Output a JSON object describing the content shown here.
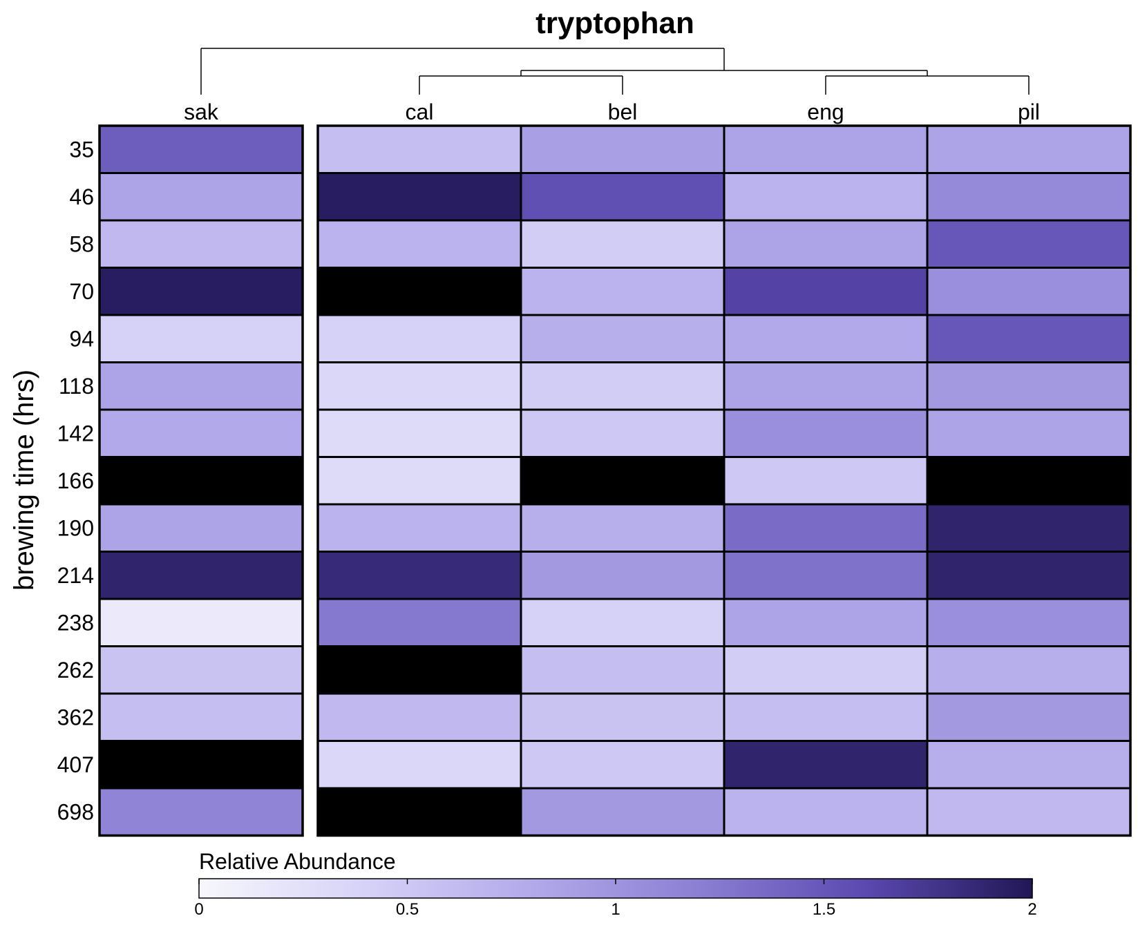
{
  "chart_data": {
    "type": "heatmap",
    "title": "tryptophan",
    "ylabel": "brewing time (hrs)",
    "columns": [
      "sak",
      "cal",
      "bel",
      "eng",
      "pil"
    ],
    "rows": [
      "35",
      "46",
      "58",
      "70",
      "94",
      "118",
      "142",
      "166",
      "190",
      "214",
      "238",
      "262",
      "362",
      "407",
      "698"
    ],
    "values": [
      [
        1.45,
        0.6,
        0.9,
        0.85,
        0.85
      ],
      [
        0.85,
        1.95,
        1.55,
        0.7,
        1.1
      ],
      [
        0.65,
        0.7,
        0.45,
        0.85,
        1.5
      ],
      [
        1.95,
        2.6,
        0.7,
        1.65,
        1.05
      ],
      [
        0.4,
        0.4,
        0.75,
        0.8,
        1.5
      ],
      [
        0.85,
        0.35,
        0.45,
        0.85,
        0.95
      ],
      [
        0.8,
        0.3,
        0.5,
        1.05,
        0.85
      ],
      [
        2.6,
        0.3,
        2.6,
        0.5,
        2.6
      ],
      [
        0.85,
        0.7,
        0.75,
        1.35,
        1.9
      ],
      [
        1.9,
        1.85,
        0.95,
        1.3,
        1.9
      ],
      [
        0.15,
        1.25,
        0.4,
        0.85,
        1.05
      ],
      [
        0.55,
        2.6,
        0.6,
        0.45,
        0.75
      ],
      [
        0.6,
        0.65,
        0.55,
        0.6,
        0.95
      ],
      [
        2.6,
        0.35,
        0.5,
        1.9,
        0.75
      ],
      [
        1.15,
        2.6,
        0.95,
        0.7,
        0.65
      ]
    ],
    "over_range_color": "#000000",
    "dendrogram": {
      "tree": [
        "sak",
        [
          [
            "cal",
            "bel"
          ],
          [
            "eng",
            "pil"
          ]
        ]
      ]
    },
    "legend": {
      "title": "Relative Abundance",
      "placement": "bottom",
      "min": 0,
      "max": 2,
      "ticks": [
        0,
        0.5,
        1,
        1.5,
        2
      ],
      "tick_labels": [
        "0",
        "0.5",
        "1",
        "1.5",
        "2"
      ],
      "colors": [
        "#f7f7fc",
        "#d6d2f7",
        "#b2a9ea",
        "#8b7fd3",
        "#5b49b0",
        "#211756"
      ]
    }
  }
}
